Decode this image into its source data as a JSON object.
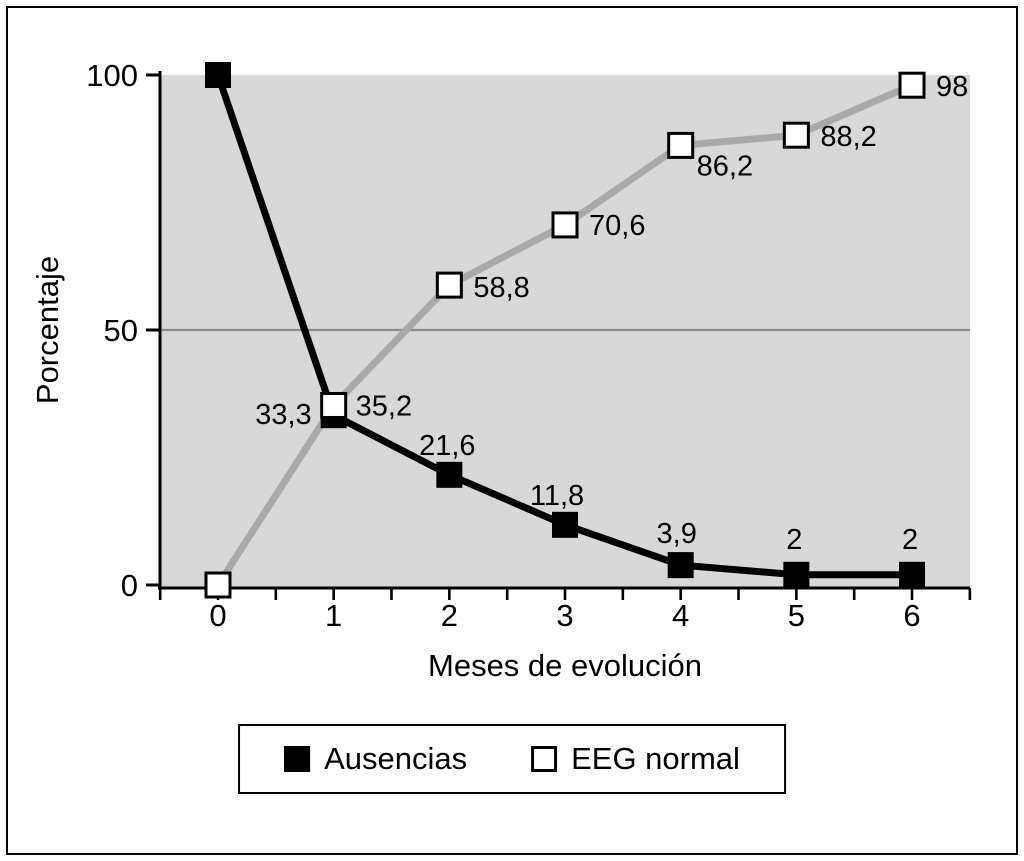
{
  "chart_data": {
    "type": "line",
    "title": "",
    "xlabel": "Meses de evolución",
    "ylabel": "Porcentaje",
    "x": [
      0,
      1,
      2,
      3,
      4,
      5,
      6
    ],
    "xlim": [
      -0.5,
      6.5
    ],
    "ylim": [
      0,
      100
    ],
    "yticks": [
      0,
      50,
      100
    ],
    "grid_y": [
      50
    ],
    "grid": "horizontal-at-50-only",
    "legend_position": "bottom",
    "plot_bg": "#d8d8d8",
    "series": [
      {
        "name": "Ausencias",
        "marker": "filled-square",
        "color": "#000000",
        "values": [
          100,
          33.3,
          21.6,
          11.8,
          3.9,
          2,
          2
        ],
        "labels": [
          "",
          "33,3",
          "21,6",
          "11,8",
          "3,9",
          "2",
          "2"
        ]
      },
      {
        "name": "EEG normal",
        "marker": "open-square",
        "color": "#a9a9a9",
        "values": [
          0,
          35.2,
          58.8,
          70.6,
          86.2,
          88.2,
          98
        ],
        "labels": [
          "",
          "35,2",
          "58,8",
          "70,6",
          "86,2",
          "88,2",
          "98"
        ]
      }
    ],
    "label_offsets": [
      [
        null,
        [
          -22,
          9,
          "end"
        ],
        [
          -2,
          -20,
          "middle"
        ],
        [
          -8,
          -20,
          "middle"
        ],
        [
          -4,
          -22,
          "middle"
        ],
        [
          -2,
          -26,
          "middle"
        ],
        [
          -2,
          -26,
          "middle"
        ]
      ],
      [
        null,
        [
          22,
          10,
          "start"
        ],
        [
          24,
          12,
          "start"
        ],
        [
          24,
          10,
          "start"
        ],
        [
          16,
          30,
          "start"
        ],
        [
          24,
          11,
          "start"
        ],
        [
          24,
          11,
          "start"
        ]
      ]
    ]
  }
}
